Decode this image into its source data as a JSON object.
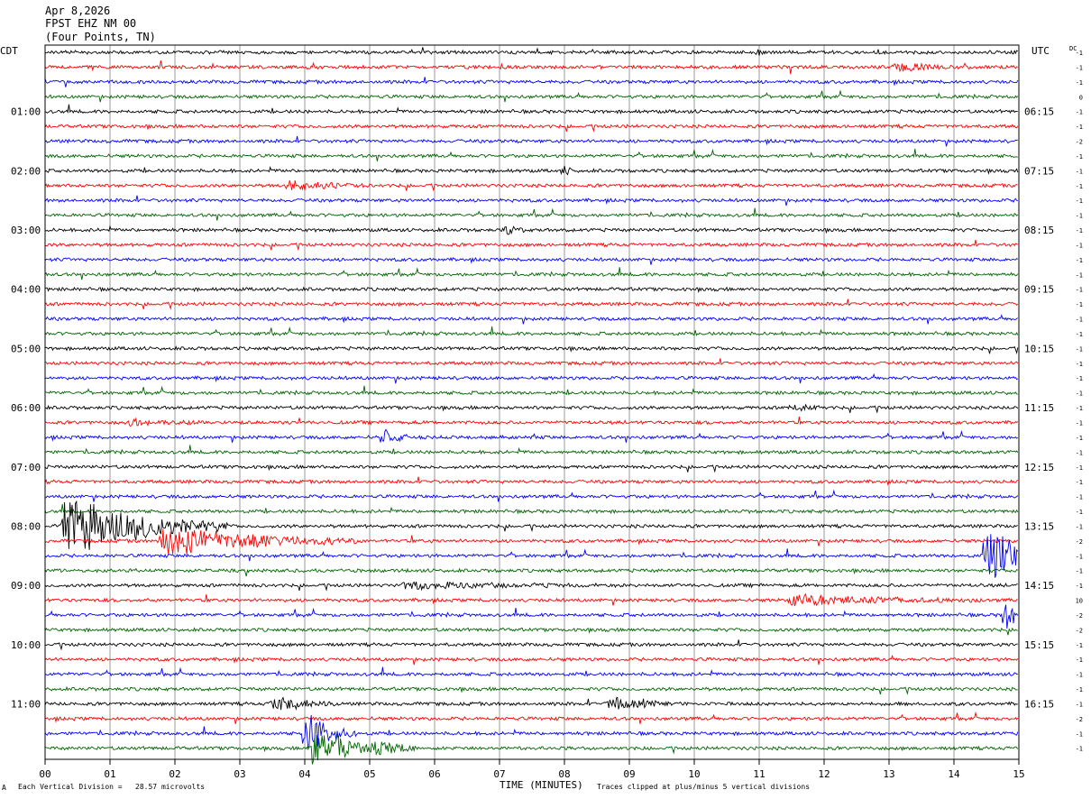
{
  "header": {
    "date": "Apr 8,2026",
    "station": "FPST EHZ NM 00",
    "location": "(Four Points, TN)"
  },
  "left_axis_label": "CDT",
  "right_axis_label": "UTC",
  "dc_label": "DC",
  "footer": {
    "left_mark": "A",
    "scale_note": "Each Vertical Division =   28.57 microvolts",
    "x_axis_title": "TIME (MINUTES)",
    "clip_note": "Traces clipped at plus/minus 5 vertical divisions"
  },
  "colors": {
    "trace_cycle": [
      "#000000",
      "#ff0000",
      "#0000ff",
      "#006400"
    ],
    "gridline": "#808080",
    "frame": "#000000"
  },
  "chart_data": {
    "type": "line",
    "subtype": "helicorder",
    "x_axis": {
      "label": "TIME (MINUTES)",
      "range": [
        0,
        15
      ],
      "ticks": [
        "00",
        "01",
        "02",
        "03",
        "04",
        "05",
        "06",
        "07",
        "08",
        "09",
        "10",
        "11",
        "12",
        "13",
        "14",
        "15"
      ]
    },
    "rows_per_hour": 4,
    "minutes_per_row": 15,
    "row_count": 48,
    "hour_labels_left": [
      "01:00",
      "02:00",
      "03:00",
      "04:00",
      "05:00",
      "06:00",
      "07:00",
      "08:00",
      "09:00",
      "10:00",
      "11:00"
    ],
    "hour_labels_right": [
      "06:15",
      "07:15",
      "08:15",
      "09:15",
      "10:15",
      "11:15",
      "12:15",
      "13:15",
      "14:15",
      "15:15",
      "16:15"
    ],
    "dc_offsets": [
      "-1",
      "-1",
      "-1",
      "0",
      "-1",
      "-1",
      "-2",
      "-1",
      "-1",
      "-1",
      "-1",
      "-1",
      "-1",
      "-1",
      "-1",
      "-1",
      "-1",
      "-1",
      "-1",
      "-1",
      "-1",
      "-1",
      "-1",
      "-1",
      "-1",
      "-1",
      "-1",
      "-1",
      "-1",
      "-1",
      "-1",
      "-1",
      "-1",
      "-2",
      "-1",
      "-1",
      "-1",
      "10",
      "-2",
      "-2",
      "-1",
      "-1",
      "-1",
      "-1",
      "-1",
      "-2",
      "-1",
      "-1"
    ],
    "clip_divisions": 5,
    "microvolts_per_division": 28.57,
    "events": [
      {
        "row": 0,
        "minute": 11.0,
        "amplitude": 6,
        "duration": 0.1
      },
      {
        "row": 1,
        "minute": 13.1,
        "amplitude": 6,
        "duration": 0.9
      },
      {
        "row": 8,
        "minute": 8.0,
        "amplitude": 6,
        "duration": 0.2
      },
      {
        "row": 9,
        "minute": 3.7,
        "amplitude": 7,
        "duration": 1.2
      },
      {
        "row": 12,
        "minute": 7.1,
        "amplitude": 6,
        "duration": 0.3
      },
      {
        "row": 24,
        "minute": 11.5,
        "amplitude": 6,
        "duration": 0.5
      },
      {
        "row": 25,
        "minute": 1.3,
        "amplitude": 4,
        "duration": 1.0
      },
      {
        "row": 26,
        "minute": 5.2,
        "amplitude": 12,
        "duration": 0.4
      },
      {
        "row": 32,
        "minute": 0.3,
        "amplitude": 40,
        "duration": 2.5
      },
      {
        "row": 33,
        "minute": 1.8,
        "amplitude": 20,
        "duration": 3.0
      },
      {
        "row": 34,
        "minute": 14.5,
        "amplitude": 40,
        "duration": 1.0
      },
      {
        "row": 36,
        "minute": 5.5,
        "amplitude": 4,
        "duration": 3.0
      },
      {
        "row": 37,
        "minute": 11.5,
        "amplitude": 6,
        "duration": 3.0
      },
      {
        "row": 38,
        "minute": 14.8,
        "amplitude": 20,
        "duration": 0.4
      },
      {
        "row": 44,
        "minute": 3.5,
        "amplitude": 10,
        "duration": 1.0
      },
      {
        "row": 44,
        "minute": 8.7,
        "amplitude": 8,
        "duration": 1.2
      },
      {
        "row": 46,
        "minute": 4.0,
        "amplitude": 30,
        "duration": 0.8
      },
      {
        "row": 47,
        "minute": 4.1,
        "amplitude": 30,
        "duration": 1.0
      },
      {
        "row": 47,
        "minute": 5.1,
        "amplitude": 12,
        "duration": 0.6
      }
    ]
  }
}
